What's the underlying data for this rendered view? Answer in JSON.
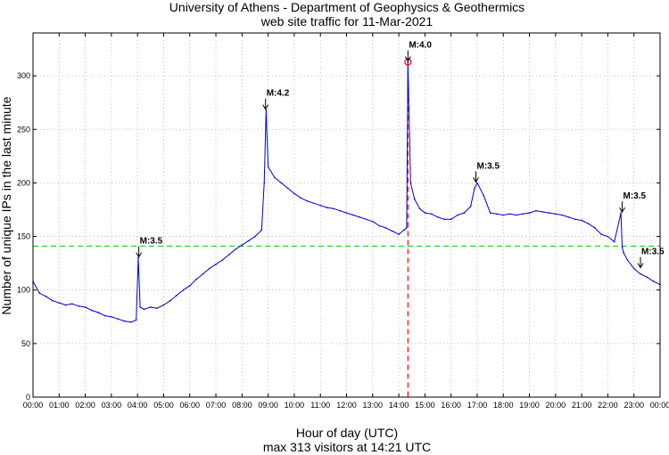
{
  "chart_data": {
    "type": "line",
    "title": [
      "University of Athens - Department of Geophysics & Geothermics",
      "web site traffic for 11-Mar-2021"
    ],
    "xlabel": "Hour of day (UTC)",
    "subcaption": "max 313 visitors at 14:21 UTC",
    "ylabel": "Number of unique IPs in the last minute",
    "xlim": [
      0,
      24
    ],
    "ylim": [
      0,
      340
    ],
    "x_ticks": [
      "00:00",
      "01:00",
      "02:00",
      "03:00",
      "04:00",
      "05:00",
      "06:00",
      "07:00",
      "08:00",
      "09:00",
      "10:00",
      "11:00",
      "12:00",
      "13:00",
      "14:00",
      "15:00",
      "16:00",
      "17:00",
      "18:00",
      "19:00",
      "20:00",
      "21:00",
      "22:00",
      "23:00",
      "00:00"
    ],
    "y_ticks": [
      0,
      50,
      100,
      150,
      200,
      250,
      300
    ],
    "grid": true,
    "reference_line": {
      "y": 141,
      "color": "#00cc00",
      "style": "dashed"
    },
    "max_marker": {
      "x": 14.35,
      "y": 313,
      "color": "#ff0000"
    },
    "colors": {
      "series": "#0000cc",
      "reference": "#00cc00",
      "max": "#ff0000"
    },
    "series": [
      {
        "x": [
          0,
          0.25,
          0.5,
          0.75,
          1,
          1.25,
          1.5,
          1.75,
          2,
          2.25,
          2.5,
          2.75,
          3,
          3.25,
          3.5,
          3.75,
          3.95,
          4.03,
          4.1,
          4.25,
          4.5,
          4.75,
          5,
          5.25,
          5.5,
          5.75,
          6,
          6.25,
          6.5,
          6.75,
          7,
          7.25,
          7.5,
          7.75,
          8,
          8.25,
          8.5,
          8.75,
          8.85,
          8.92,
          9,
          9.25,
          9.5,
          9.75,
          10,
          10.25,
          10.5,
          10.75,
          11,
          11.25,
          11.5,
          11.75,
          12,
          12.25,
          12.5,
          12.75,
          13,
          13.25,
          13.5,
          13.75,
          14,
          14.2,
          14.3,
          14.35,
          14.45,
          14.6,
          14.8,
          15,
          15.25,
          15.5,
          15.75,
          16,
          16.25,
          16.5,
          16.75,
          16.9,
          17,
          17.25,
          17.5,
          17.75,
          18,
          18.25,
          18.5,
          18.75,
          19,
          19.25,
          19.5,
          19.75,
          20,
          20.25,
          20.5,
          20.75,
          21,
          21.25,
          21.5,
          21.75,
          22,
          22.25,
          22.5,
          22.55,
          22.6,
          22.75,
          23,
          23.25,
          23.5,
          23.75,
          24
        ],
        "y": [
          108,
          97,
          94,
          90,
          88,
          86,
          87,
          85,
          84,
          81,
          79,
          76,
          75,
          73,
          71,
          70,
          72,
          130,
          84,
          82,
          84,
          83,
          86,
          90,
          95,
          100,
          104,
          110,
          115,
          120,
          124,
          128,
          133,
          138,
          142,
          146,
          150,
          156,
          200,
          268,
          215,
          205,
          200,
          195,
          190,
          186,
          183,
          181,
          179,
          177,
          176,
          174,
          172,
          170,
          168,
          166,
          164,
          160,
          158,
          155,
          152,
          156,
          158,
          313,
          200,
          185,
          176,
          172,
          171,
          168,
          166,
          166,
          170,
          172,
          178,
          195,
          200,
          188,
          172,
          171,
          170,
          171,
          170,
          171,
          172,
          174,
          173,
          172,
          171,
          170,
          168,
          166,
          165,
          162,
          158,
          152,
          150,
          145,
          172,
          140,
          135,
          128,
          120,
          115,
          112,
          108,
          105
        ]
      }
    ],
    "annotations": [
      {
        "label": "M:3.5",
        "x": 4.05,
        "y": 130
      },
      {
        "label": "M:4.2",
        "x": 8.9,
        "y": 268
      },
      {
        "label": "M:4.0",
        "x": 14.35,
        "y": 313
      },
      {
        "label": "M:3.5",
        "x": 16.95,
        "y": 200
      },
      {
        "label": "M:3.5",
        "x": 22.55,
        "y": 172
      },
      {
        "label": "M:3.5",
        "x": 23.25,
        "y": 120
      }
    ]
  }
}
